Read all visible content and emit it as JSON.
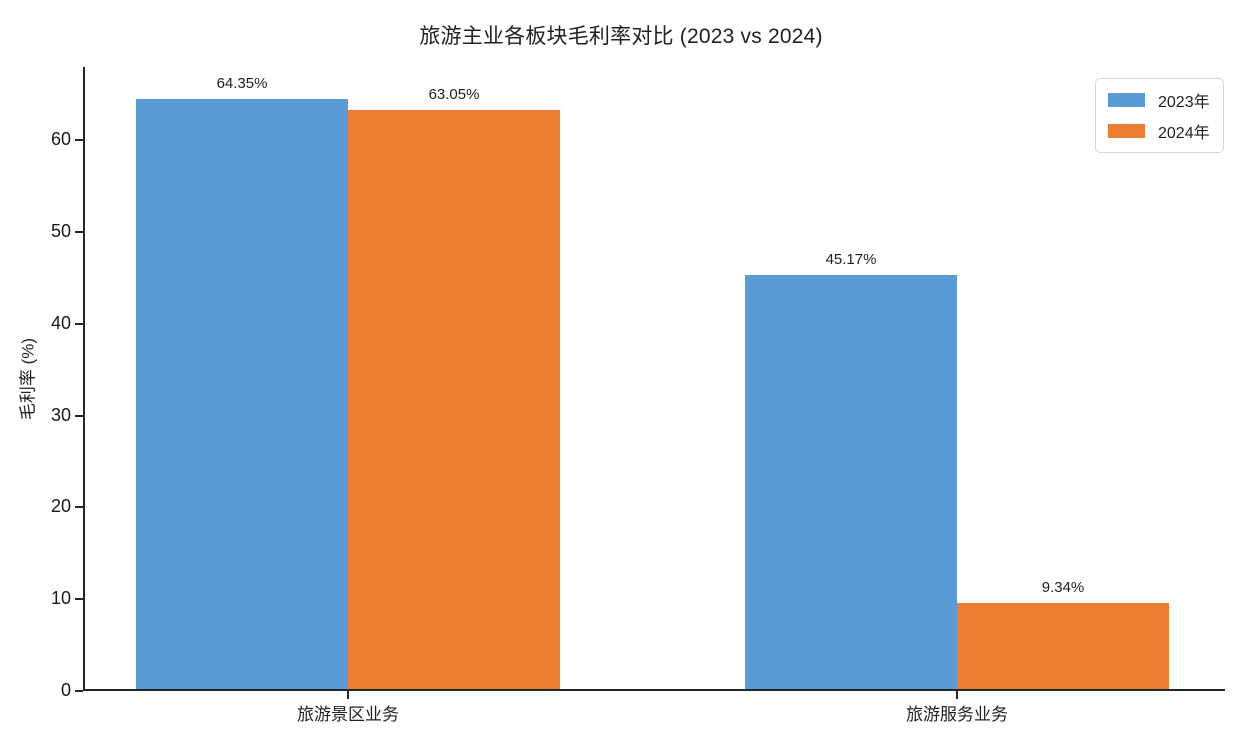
{
  "page": {
    "background_color": "#ffffff",
    "text_color": "#1f1f1f",
    "axis_color": "#262626"
  },
  "chart_data": {
    "type": "bar",
    "title": "旅游主业各板块毛利率对比 (2023 vs 2024)",
    "xlabel": "",
    "ylabel": "毛利率 (%)",
    "categories": [
      "旅游景区业务",
      "旅游服务业务"
    ],
    "series": [
      {
        "name": "2023年",
        "color": "#5B9BD5",
        "values": [
          64.35,
          45.17
        ]
      },
      {
        "name": "2024年",
        "color": "#ED7D31",
        "values": [
          63.05,
          9.34
        ]
      }
    ],
    "value_labels": [
      [
        "64.35%",
        "45.17%"
      ],
      [
        "63.05%",
        "9.34%"
      ]
    ],
    "ylim": [
      0,
      68
    ],
    "yticks": [
      0,
      10,
      20,
      30,
      40,
      50,
      60
    ],
    "grid": false,
    "legend_position": "upper right"
  }
}
